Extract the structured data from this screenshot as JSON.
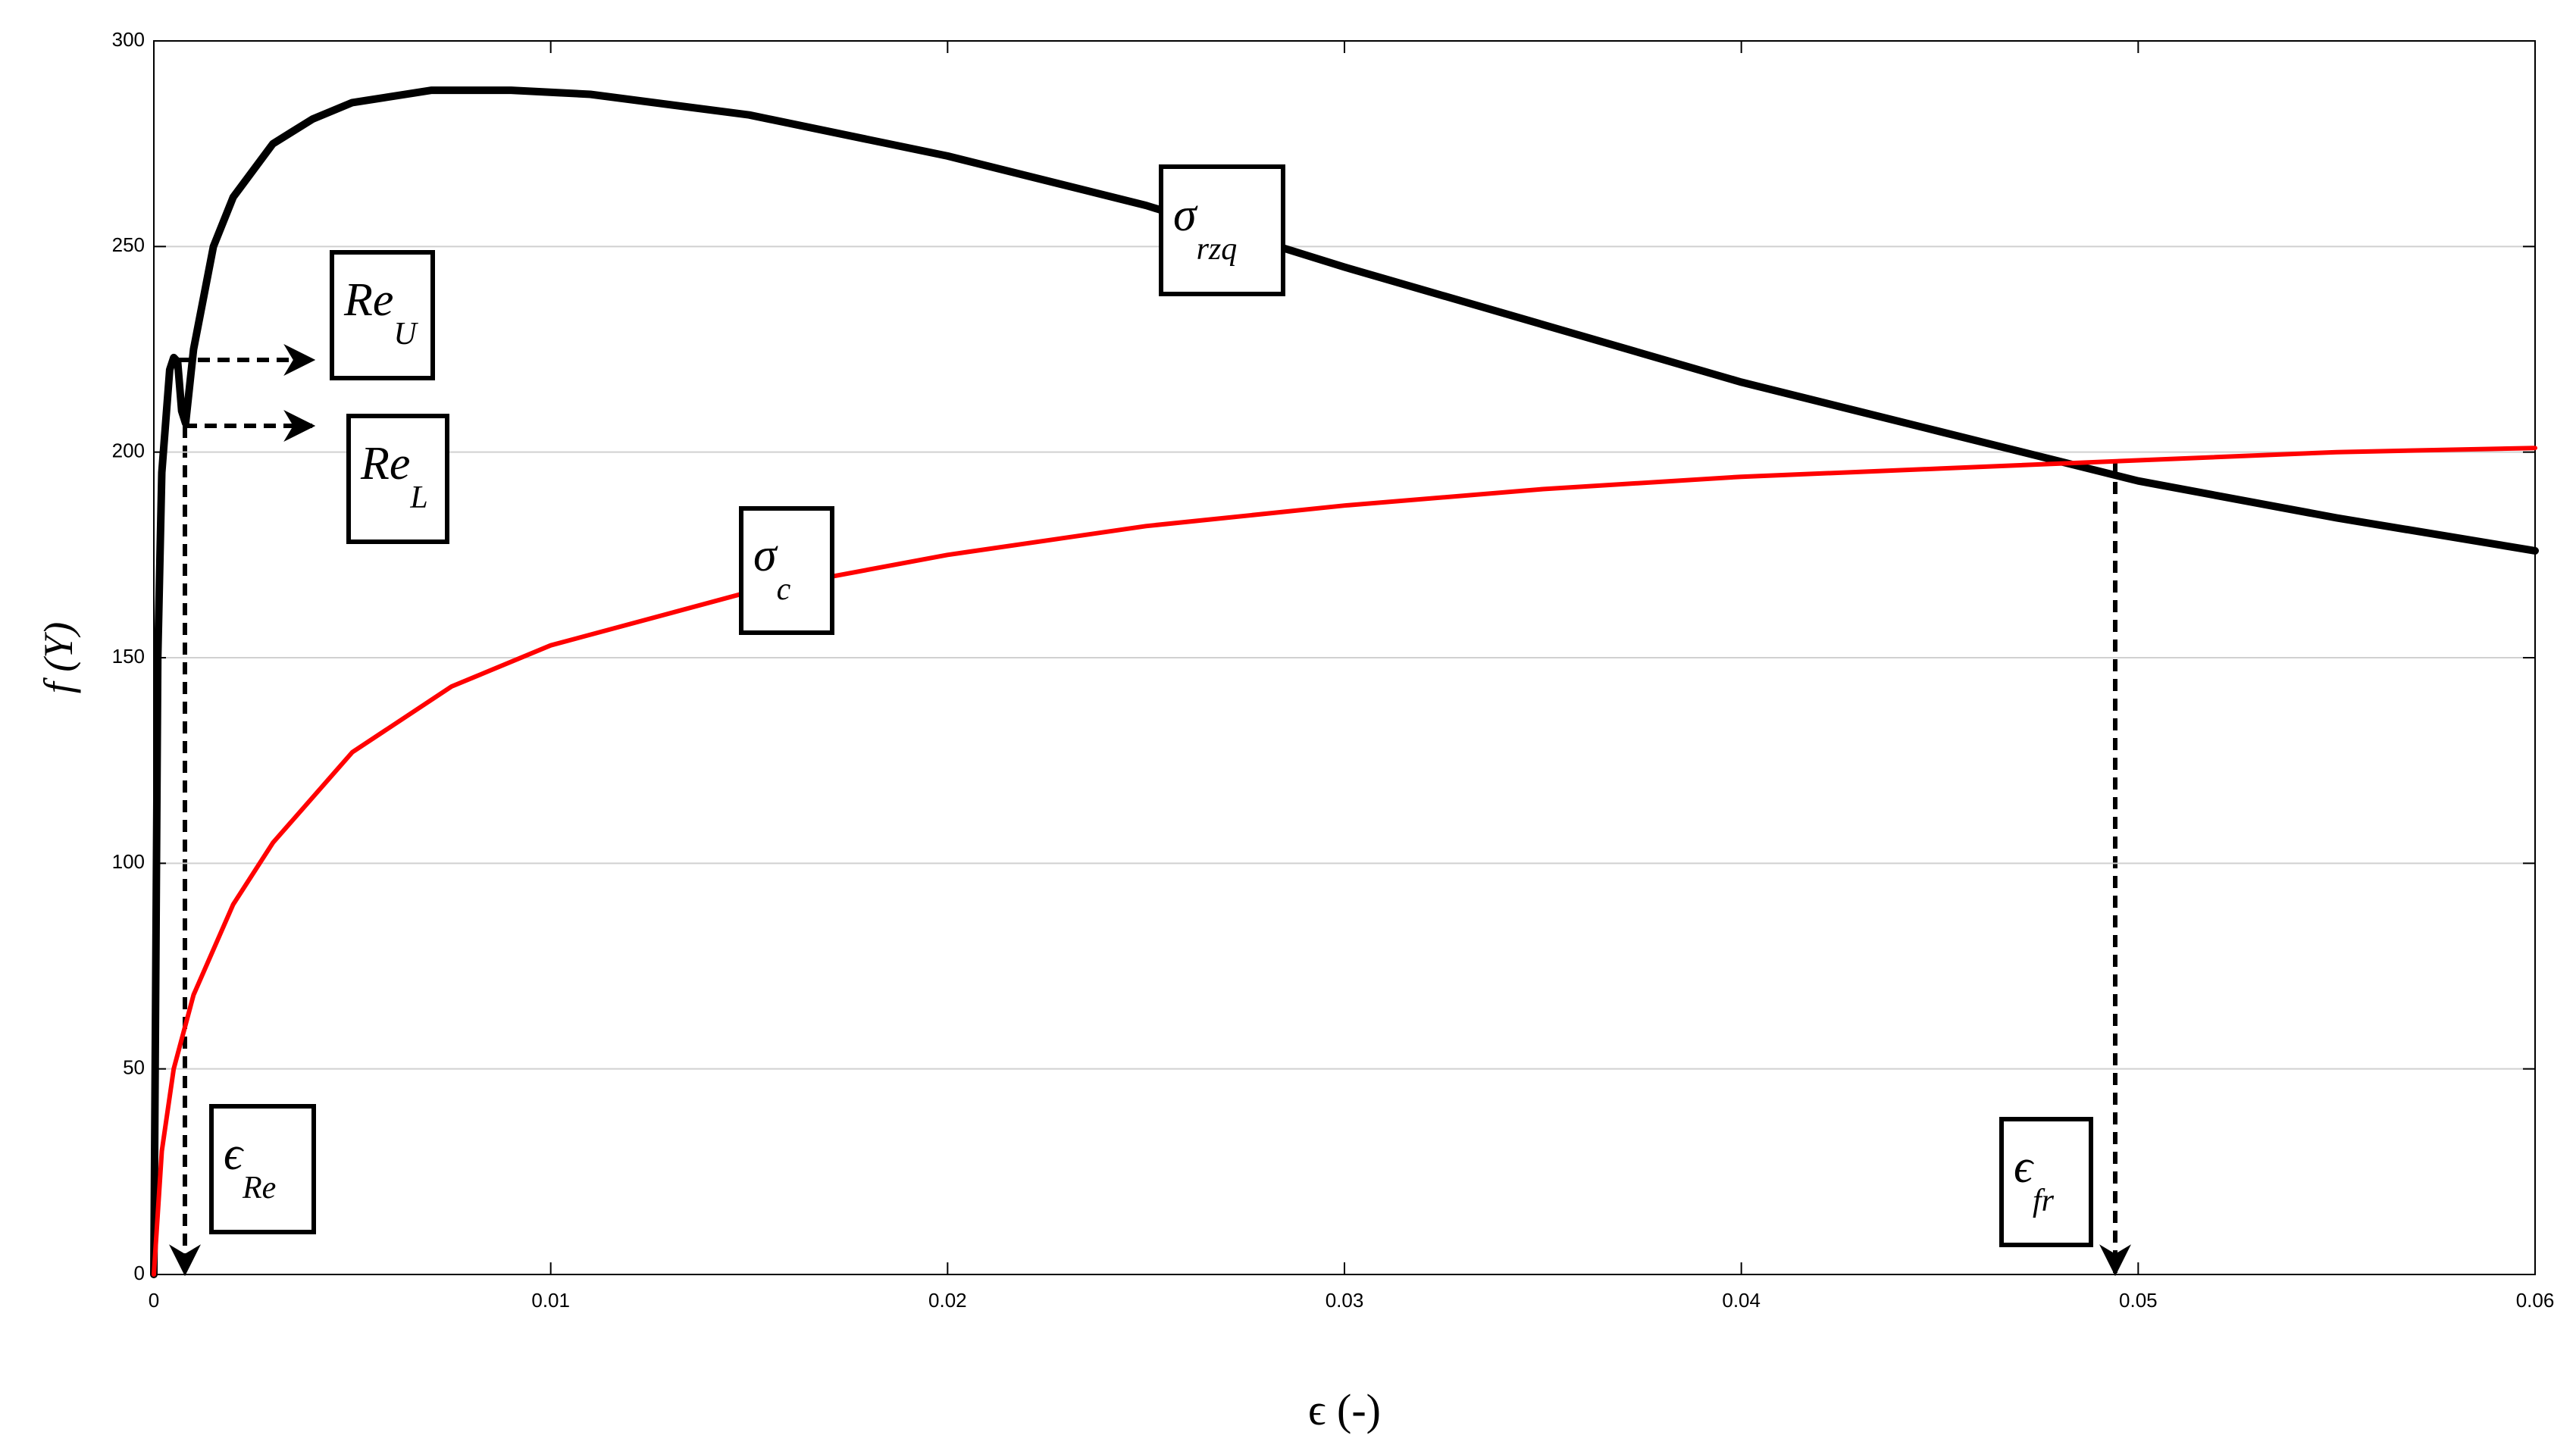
{
  "chart_data": {
    "type": "line",
    "x_label": "ϵ (-)",
    "y_label": "f (Y)",
    "xlim": [
      0,
      0.06
    ],
    "xticks": [
      0,
      0.01,
      0.02,
      0.03,
      0.04,
      0.05,
      0.06
    ],
    "ylim": [
      0,
      300
    ],
    "yticks": [
      0,
      50,
      100,
      150,
      200,
      250,
      300
    ],
    "grid": true,
    "series": [
      {
        "color": "#000000",
        "x": [
          0,
          0.0001,
          0.0002,
          0.0004,
          0.0005,
          0.0006,
          0.0007,
          0.0008,
          0.001,
          0.0015,
          0.002,
          0.003,
          0.004,
          0.005,
          0.007,
          0.009,
          0.011,
          0.015,
          0.02,
          0.025,
          0.03,
          0.035,
          0.04,
          0.045,
          0.05,
          0.055,
          0.06
        ],
        "values": [
          0,
          150,
          195,
          220,
          223,
          222,
          210,
          207,
          225,
          250,
          262,
          275,
          281,
          285,
          288,
          288,
          287,
          282,
          272,
          260,
          245,
          231,
          217,
          205,
          193,
          184,
          176
        ]
      },
      {
        "color": "#ff0000",
        "x": [
          0,
          0.0002,
          0.0005,
          0.001,
          0.002,
          0.003,
          0.005,
          0.0075,
          0.01,
          0.015,
          0.02,
          0.025,
          0.03,
          0.035,
          0.04,
          0.045,
          0.05,
          0.055,
          0.06
        ],
        "values": [
          0,
          30,
          50,
          68,
          90,
          105,
          127,
          143,
          153,
          166,
          175,
          182,
          187,
          191,
          194,
          196,
          198,
          200,
          201
        ]
      }
    ],
    "annotations": [
      {
        "text": "σ",
        "sub": "rzq"
      },
      {
        "text": "Re",
        "sub": "U"
      },
      {
        "text": "Re",
        "sub": "L"
      },
      {
        "text": "σ",
        "sub": "c"
      },
      {
        "text": "ϵ",
        "sub": "Re"
      },
      {
        "text": "ϵ",
        "sub": "fr"
      }
    ]
  }
}
